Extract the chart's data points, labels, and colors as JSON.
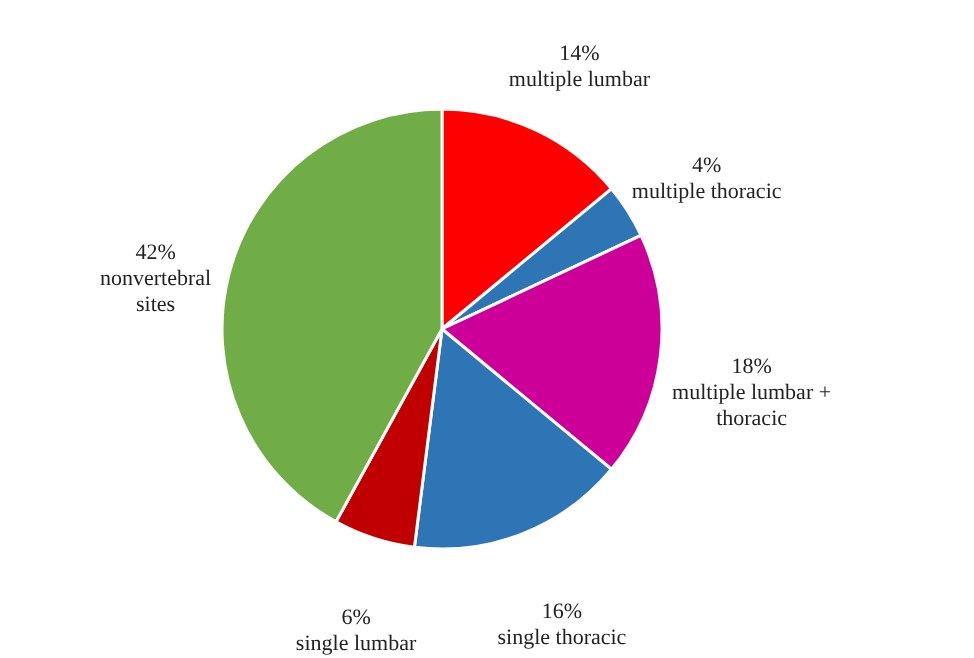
{
  "chart_data": {
    "type": "pie",
    "categories": [
      "multiple lumbar",
      "multiple thoracic",
      "multiple lumbar + thoracic",
      "single thoracic",
      "single lumbar",
      "nonvertebral sites"
    ],
    "values": [
      14,
      4,
      18,
      16,
      6,
      42
    ],
    "value_labels": [
      "14%",
      "4%",
      "18%",
      "16%",
      "6%",
      "42%"
    ],
    "colors": [
      "#ff0000",
      "#2e75b6",
      "#cc0099",
      "#2e75b6",
      "#c00000",
      "#70ad47"
    ]
  }
}
